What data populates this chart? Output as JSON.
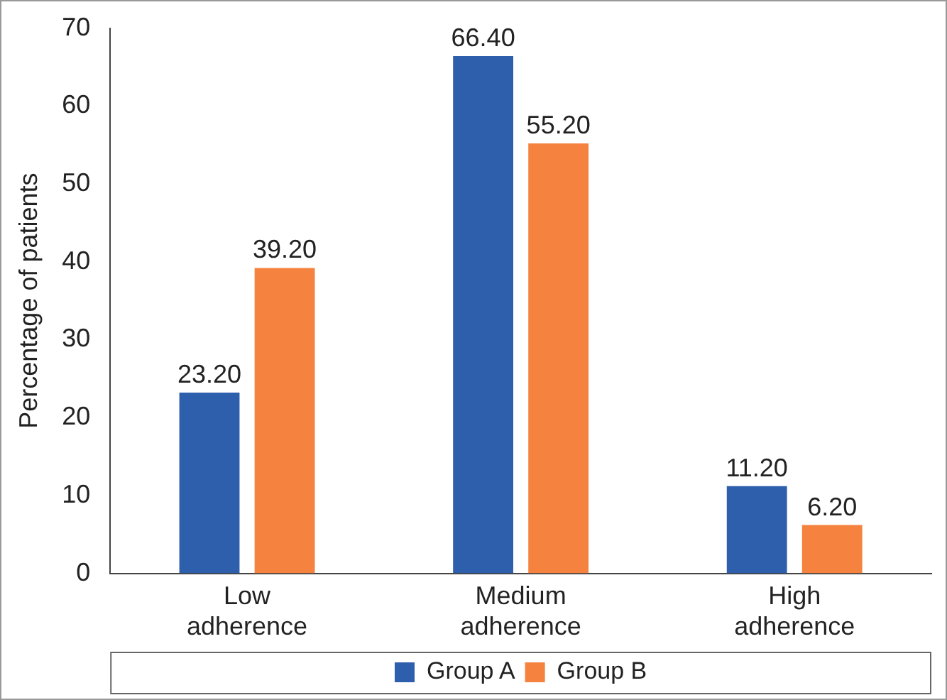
{
  "chart_data": {
    "type": "bar",
    "ylabel": "Percentage of patients",
    "categories": [
      "Low adherence",
      "Medium adherence",
      "High adherence"
    ],
    "series": [
      {
        "name": "Group A",
        "color": "#2e5fac",
        "values": [
          23.2,
          66.4,
          11.2
        ],
        "value_labels": [
          "23.20",
          "66.40",
          "11.20"
        ]
      },
      {
        "name": "Group B",
        "color": "#f5823f",
        "values": [
          39.2,
          55.2,
          6.2
        ],
        "value_labels": [
          "39.20",
          "55.20",
          "6.20"
        ]
      }
    ],
    "ylim": [
      0,
      70
    ],
    "yticks": [
      0,
      10,
      20,
      30,
      40,
      50,
      60,
      70
    ],
    "grid": false,
    "legend": "bottom"
  }
}
